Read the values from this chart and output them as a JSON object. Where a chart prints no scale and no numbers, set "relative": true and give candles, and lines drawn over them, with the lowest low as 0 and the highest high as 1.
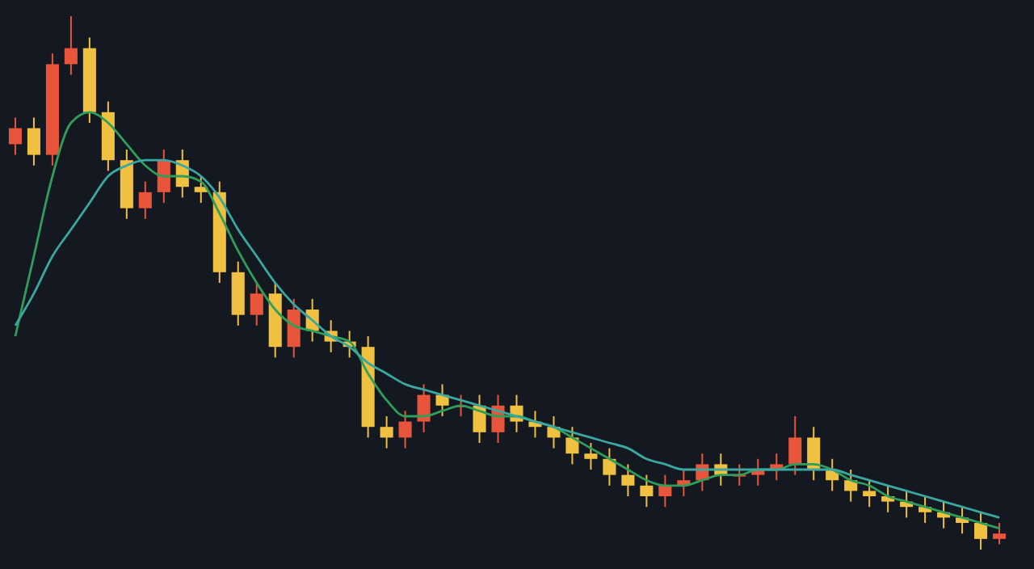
{
  "chart_data": {
    "type": "candlestick",
    "relative": true,
    "categories": [
      null,
      null,
      null,
      null,
      null,
      null,
      null,
      null,
      null,
      null,
      null,
      null,
      null,
      null,
      null,
      null,
      null,
      null,
      null,
      null,
      null,
      null,
      null,
      null,
      null,
      null,
      null,
      null,
      null,
      null,
      null,
      null,
      null,
      null,
      null,
      null,
      null,
      null,
      null,
      null,
      null,
      null,
      null,
      null,
      null,
      null,
      null,
      null,
      null,
      null,
      null,
      null,
      null,
      null
    ],
    "ohlc": [
      [
        0.76,
        0.81,
        0.74,
        0.79
      ],
      [
        0.79,
        0.81,
        0.72,
        0.74
      ],
      [
        0.74,
        0.93,
        0.72,
        0.91
      ],
      [
        0.91,
        1,
        0.89,
        0.94
      ],
      [
        0.94,
        0.96,
        0.8,
        0.82
      ],
      [
        0.82,
        0.84,
        0.71,
        0.73
      ],
      [
        0.73,
        0.75,
        0.62,
        0.64
      ],
      [
        0.64,
        0.69,
        0.62,
        0.67
      ],
      [
        0.67,
        0.75,
        0.65,
        0.73
      ],
      [
        0.73,
        0.75,
        0.66,
        0.68
      ],
      [
        0.68,
        0.7,
        0.65,
        0.67
      ],
      [
        0.67,
        0.69,
        0.5,
        0.52
      ],
      [
        0.52,
        0.54,
        0.42,
        0.44
      ],
      [
        0.44,
        0.5,
        0.42,
        0.48
      ],
      [
        0.48,
        0.5,
        0.36,
        0.38
      ],
      [
        0.38,
        0.47,
        0.36,
        0.45
      ],
      [
        0.45,
        0.47,
        0.39,
        0.41
      ],
      [
        0.41,
        0.43,
        0.37,
        0.39
      ],
      [
        0.39,
        0.41,
        0.36,
        0.38
      ],
      [
        0.38,
        0.4,
        0.21,
        0.23
      ],
      [
        0.23,
        0.25,
        0.19,
        0.21
      ],
      [
        0.21,
        0.26,
        0.19,
        0.24
      ],
      [
        0.24,
        0.31,
        0.22,
        0.29
      ],
      [
        0.29,
        0.31,
        0.25,
        0.27
      ],
      [
        0.27,
        0.29,
        0.25,
        0.27
      ],
      [
        0.27,
        0.29,
        0.2,
        0.22
      ],
      [
        0.22,
        0.29,
        0.2,
        0.27
      ],
      [
        0.27,
        0.29,
        0.22,
        0.24
      ],
      [
        0.24,
        0.26,
        0.21,
        0.23
      ],
      [
        0.23,
        0.25,
        0.19,
        0.21
      ],
      [
        0.21,
        0.23,
        0.16,
        0.18
      ],
      [
        0.18,
        0.2,
        0.15,
        0.17
      ],
      [
        0.17,
        0.19,
        0.12,
        0.14
      ],
      [
        0.14,
        0.16,
        0.1,
        0.12
      ],
      [
        0.12,
        0.14,
        0.08,
        0.1
      ],
      [
        0.1,
        0.14,
        0.08,
        0.12
      ],
      [
        0.12,
        0.15,
        0.1,
        0.13
      ],
      [
        0.13,
        0.18,
        0.11,
        0.16
      ],
      [
        0.16,
        0.18,
        0.12,
        0.14
      ],
      [
        0.14,
        0.16,
        0.12,
        0.14
      ],
      [
        0.14,
        0.17,
        0.12,
        0.15
      ],
      [
        0.15,
        0.18,
        0.13,
        0.16
      ],
      [
        0.16,
        0.25,
        0.14,
        0.21
      ],
      [
        0.21,
        0.23,
        0.13,
        0.15
      ],
      [
        0.15,
        0.17,
        0.11,
        0.13
      ],
      [
        0.13,
        0.15,
        0.09,
        0.11
      ],
      [
        0.11,
        0.13,
        0.08,
        0.1
      ],
      [
        0.1,
        0.12,
        0.07,
        0.09
      ],
      [
        0.09,
        0.11,
        0.06,
        0.08
      ],
      [
        0.08,
        0.1,
        0.05,
        0.07
      ],
      [
        0.07,
        0.09,
        0.04,
        0.06
      ],
      [
        0.06,
        0.08,
        0.03,
        0.05
      ],
      [
        0.05,
        0.07,
        0,
        0.02
      ],
      [
        0.02,
        0.05,
        0.01,
        0.03
      ]
    ],
    "series": [
      {
        "type": "line",
        "color": "#2e9e5a",
        "values": [
          0.4,
          0.55,
          0.7,
          0.8,
          0.82,
          0.8,
          0.76,
          0.72,
          0.7,
          0.7,
          0.69,
          0.63,
          0.56,
          0.5,
          0.45,
          0.42,
          0.41,
          0.4,
          0.39,
          0.33,
          0.28,
          0.25,
          0.25,
          0.26,
          0.27,
          0.26,
          0.25,
          0.25,
          0.24,
          0.23,
          0.21,
          0.19,
          0.17,
          0.15,
          0.13,
          0.12,
          0.12,
          0.13,
          0.14,
          0.14,
          0.15,
          0.15,
          0.16,
          0.16,
          0.15,
          0.13,
          0.12,
          0.1,
          0.09,
          0.08,
          0.07,
          0.06,
          0.05,
          0.04
        ]
      },
      {
        "type": "line",
        "color": "#3aa8a0",
        "values": [
          0.42,
          0.48,
          0.55,
          0.6,
          0.65,
          0.7,
          0.72,
          0.73,
          0.73,
          0.72,
          0.7,
          0.66,
          0.6,
          0.55,
          0.5,
          0.46,
          0.43,
          0.4,
          0.38,
          0.35,
          0.33,
          0.31,
          0.3,
          0.29,
          0.28,
          0.27,
          0.26,
          0.25,
          0.24,
          0.23,
          0.22,
          0.21,
          0.2,
          0.19,
          0.17,
          0.16,
          0.15,
          0.15,
          0.15,
          0.15,
          0.15,
          0.15,
          0.15,
          0.15,
          0.15,
          0.14,
          0.13,
          0.12,
          0.11,
          0.1,
          0.09,
          0.08,
          0.07,
          0.06
        ]
      }
    ]
  }
}
